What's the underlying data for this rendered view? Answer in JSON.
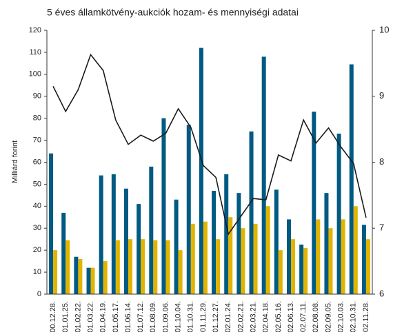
{
  "chart_data": {
    "type": "bar",
    "title": "5 éves államkötvény-aukciók hozam- és mennyiségi adatai",
    "y_label": "Milliárd forint",
    "categories": [
      "00.12.28.",
      "01.01.25.",
      "01.02.22.",
      "01.03.22.",
      "01.04.19.",
      "01.05.17.",
      "01.06.14.",
      "01.07.12.",
      "01.08.09.",
      "01.09.06.",
      "01.10.04.",
      "01.10.31.",
      "01.11.29.",
      "01.12.27.",
      "02.01.24.",
      "02.02.21.",
      "02.03.21.",
      "02.04.18.",
      "02.05.16.",
      "02.06.13.",
      "02.07.11.",
      "02.08.08.",
      "02.09.05.",
      "02.10.03.",
      "02.10.31.",
      "02.11.28."
    ],
    "series": [
      {
        "type": "bar",
        "color": "#005a82",
        "values": [
          64,
          37,
          17,
          12,
          54,
          54.5,
          48,
          41,
          58,
          80,
          43,
          77,
          112,
          47,
          54.5,
          46,
          74,
          108,
          47.5,
          34,
          22.5,
          83,
          46,
          73,
          104.5,
          31.5
        ]
      },
      {
        "type": "bar",
        "color": "#e0b400",
        "values": [
          20,
          24.5,
          16,
          12,
          15,
          24.5,
          25,
          25,
          24.5,
          24.5,
          20,
          32,
          33,
          25,
          35,
          30,
          32,
          40,
          20,
          25,
          21,
          34,
          30,
          34,
          40,
          25
        ]
      },
      {
        "type": "line",
        "axis": "y2",
        "color": "#1a1a1a",
        "values": [
          9.15,
          8.77,
          9.1,
          9.63,
          9.39,
          8.64,
          8.27,
          8.41,
          8.32,
          8.44,
          8.81,
          8.53,
          7.95,
          7.77,
          6.91,
          7.18,
          7.45,
          7.43,
          8.11,
          8.02,
          8.64,
          8.29,
          8.52,
          8.23,
          7.98,
          7.16
        ]
      }
    ],
    "ylim": [
      0,
      120
    ],
    "yticks": [
      0,
      10,
      20,
      30,
      40,
      50,
      60,
      70,
      80,
      90,
      100,
      110,
      120
    ],
    "y2lim": [
      6,
      10
    ],
    "y2ticks": [
      6,
      7,
      8,
      9,
      10
    ]
  }
}
